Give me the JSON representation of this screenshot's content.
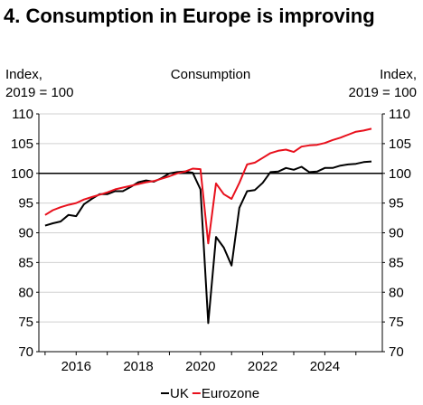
{
  "page": {
    "heading": "4. Consumption in Europe is improving"
  },
  "chart_data": {
    "type": "line",
    "title": "Consumption",
    "ylabel_left": [
      "Index,",
      "2019 = 100"
    ],
    "ylabel_right": [
      "Index,",
      "2019 = 100"
    ],
    "xlim": [
      2014.8,
      2025.85
    ],
    "ylim": [
      70,
      110
    ],
    "yticks": [
      70,
      75,
      80,
      85,
      90,
      95,
      100,
      105,
      110
    ],
    "xticks": [
      2016,
      2018,
      2020,
      2022,
      2024
    ],
    "grid": true,
    "reference_line": 100,
    "legend": {
      "placement": "bottom-center"
    },
    "series": [
      {
        "name": "UK",
        "color": "#000000",
        "x": [
          2015.0,
          2015.25,
          2015.5,
          2015.75,
          2016.0,
          2016.25,
          2016.5,
          2016.75,
          2017.0,
          2017.25,
          2017.5,
          2017.75,
          2018.0,
          2018.25,
          2018.5,
          2018.75,
          2019.0,
          2019.25,
          2019.5,
          2019.75,
          2020.0,
          2020.25,
          2020.5,
          2020.75,
          2021.0,
          2021.25,
          2021.5,
          2021.75,
          2022.0,
          2022.25,
          2022.5,
          2022.75,
          2023.0,
          2023.25,
          2023.5,
          2023.75,
          2024.0,
          2024.25,
          2024.5,
          2024.75,
          2025.0,
          2025.25,
          2025.5
        ],
        "values": [
          91.2,
          91.6,
          91.9,
          93.0,
          92.8,
          94.8,
          95.7,
          96.5,
          96.5,
          97.0,
          97.0,
          97.7,
          98.5,
          98.8,
          98.6,
          99.2,
          100.0,
          100.2,
          100.3,
          100.1,
          97.3,
          74.8,
          89.3,
          87.5,
          84.5,
          94.2,
          97.0,
          97.2,
          98.4,
          100.2,
          100.3,
          100.9,
          100.6,
          101.1,
          100.2,
          100.3,
          100.9,
          100.9,
          101.3,
          101.5,
          101.6,
          101.9,
          102.0
        ]
      },
      {
        "name": "Eurozone",
        "color": "#e8101c",
        "x": [
          2015.0,
          2015.25,
          2015.5,
          2015.75,
          2016.0,
          2016.25,
          2016.5,
          2016.75,
          2017.0,
          2017.25,
          2017.5,
          2017.75,
          2018.0,
          2018.25,
          2018.5,
          2018.75,
          2019.0,
          2019.25,
          2019.5,
          2019.75,
          2020.0,
          2020.25,
          2020.5,
          2020.75,
          2021.0,
          2021.25,
          2021.5,
          2021.75,
          2022.0,
          2022.25,
          2022.5,
          2022.75,
          2023.0,
          2023.25,
          2023.5,
          2023.75,
          2024.0,
          2024.25,
          2024.5,
          2024.75,
          2025.0,
          2025.25,
          2025.5
        ],
        "values": [
          93.0,
          93.8,
          94.3,
          94.7,
          95.0,
          95.6,
          96.0,
          96.4,
          96.8,
          97.3,
          97.6,
          97.9,
          98.2,
          98.5,
          98.7,
          99.1,
          99.5,
          100.0,
          100.3,
          100.8,
          100.7,
          88.2,
          98.3,
          96.5,
          95.7,
          98.4,
          101.5,
          101.8,
          102.6,
          103.4,
          103.8,
          104.0,
          103.6,
          104.5,
          104.7,
          104.8,
          105.1,
          105.6,
          106.0,
          106.5,
          107.0,
          107.2,
          107.5
        ]
      }
    ]
  }
}
